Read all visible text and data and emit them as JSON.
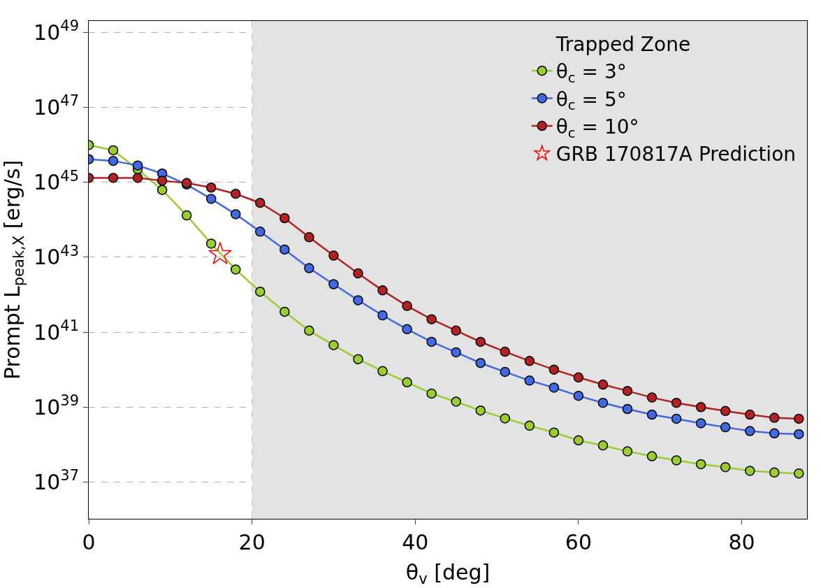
{
  "chart_data": {
    "type": "line",
    "xlabel": "θ$_{v}$ [deg]",
    "ylabel": "Prompt L$_{peak,X}$ [erg/s]",
    "x": [
      0,
      3,
      6,
      9,
      12,
      15,
      18,
      21,
      24,
      27,
      30,
      33,
      36,
      39,
      42,
      45,
      48,
      51,
      54,
      57,
      60,
      63,
      66,
      69,
      72,
      75,
      78,
      81,
      84,
      87
    ],
    "series": [
      {
        "name": "θ$_{c}$ = 3°",
        "color": "#9acd32",
        "values": [
          9.8e+45,
          7.1e+45,
          2.2e+45,
          6.2e+44,
          1.3e+44,
          2.3e+43,
          4.7e+42,
          1.2e+42,
          3.5e+41,
          1.1e+41,
          4.5e+40,
          1.9e+40,
          9.1e+39,
          4.6e+39,
          2.3e+39,
          1.4e+39,
          8.1e+38,
          5e+38,
          3.2e+38,
          2.1e+38,
          1.3e+38,
          9.5e+37,
          6.6e+37,
          4.9e+37,
          3.8e+37,
          3e+37,
          2.5e+37,
          2e+37,
          1.8e+37,
          1.7e+37
        ]
      },
      {
        "name": "θ$_{c}$ = 5°",
        "color": "#4169e1",
        "values": [
          4.1e+45,
          3.7e+45,
          2.8e+45,
          1.7e+45,
          8.7e+44,
          3.6e+44,
          1.4e+44,
          4.8e+43,
          1.6e+43,
          5.1e+42,
          1.9e+42,
          7.1e+41,
          2.8e+41,
          1.2e+41,
          5.5e+40,
          2.9e+40,
          1.5e+40,
          8.7e+39,
          5.1e+39,
          3.3e+39,
          2e+39,
          1.3e+39,
          8.9e+38,
          6.3e+38,
          4.9e+38,
          3.7e+38,
          2.9e+38,
          2.3e+38,
          2e+38,
          1.9e+38
        ]
      },
      {
        "name": "θ$_{c}$ = 10°",
        "color": "#b22222",
        "values": [
          1.3e+45,
          1.3e+45,
          1.3e+45,
          1.1e+45,
          9.5e+44,
          7.2e+44,
          4.9e+44,
          2.8e+44,
          1.1e+44,
          3.4e+43,
          1.1e+43,
          3.7e+42,
          1.3e+42,
          5e+41,
          2.2e+41,
          1.1e+41,
          5.5e+40,
          3e+40,
          1.7e+40,
          1e+40,
          6.2e+39,
          4e+39,
          2.7e+39,
          1.8e+39,
          1.3e+39,
          1e+39,
          7.9e+38,
          6.3e+38,
          5.2e+38,
          4.9e+38
        ]
      },
      {
        "name": "GRB 170817A Prediction",
        "type": "scatter",
        "marker": "star",
        "color": "#ff0000",
        "x": [
          16.1
        ],
        "values": [
          1.2e+43
        ]
      }
    ],
    "bands": [
      {
        "axis": "x",
        "from": 20,
        "to": 88,
        "label": "Trapped Zone",
        "color": "#e3e3e3"
      }
    ],
    "marker": "circle",
    "line_style": "solid",
    "log": "y",
    "grid": true,
    "legend": "top right",
    "xlim": [
      0,
      88
    ],
    "xticks": [
      0,
      20,
      40,
      60,
      80
    ],
    "ylim": [
      1.05e+36,
      2e+49
    ],
    "yticks": [
      {
        "value": 1e+37,
        "label": "10$^{37}$"
      },
      {
        "value": 1e+39,
        "label": "10$^{39}$"
      },
      {
        "value": 1e+41,
        "label": "10$^{41}$"
      },
      {
        "value": 1e+43,
        "label": "10$^{43}$"
      },
      {
        "value": 1e+45,
        "label": "10$^{45}$"
      },
      {
        "value": 1e+47,
        "label": "10$^{47}$"
      },
      {
        "value": 1e+49,
        "label": "10$^{49}$"
      }
    ]
  }
}
